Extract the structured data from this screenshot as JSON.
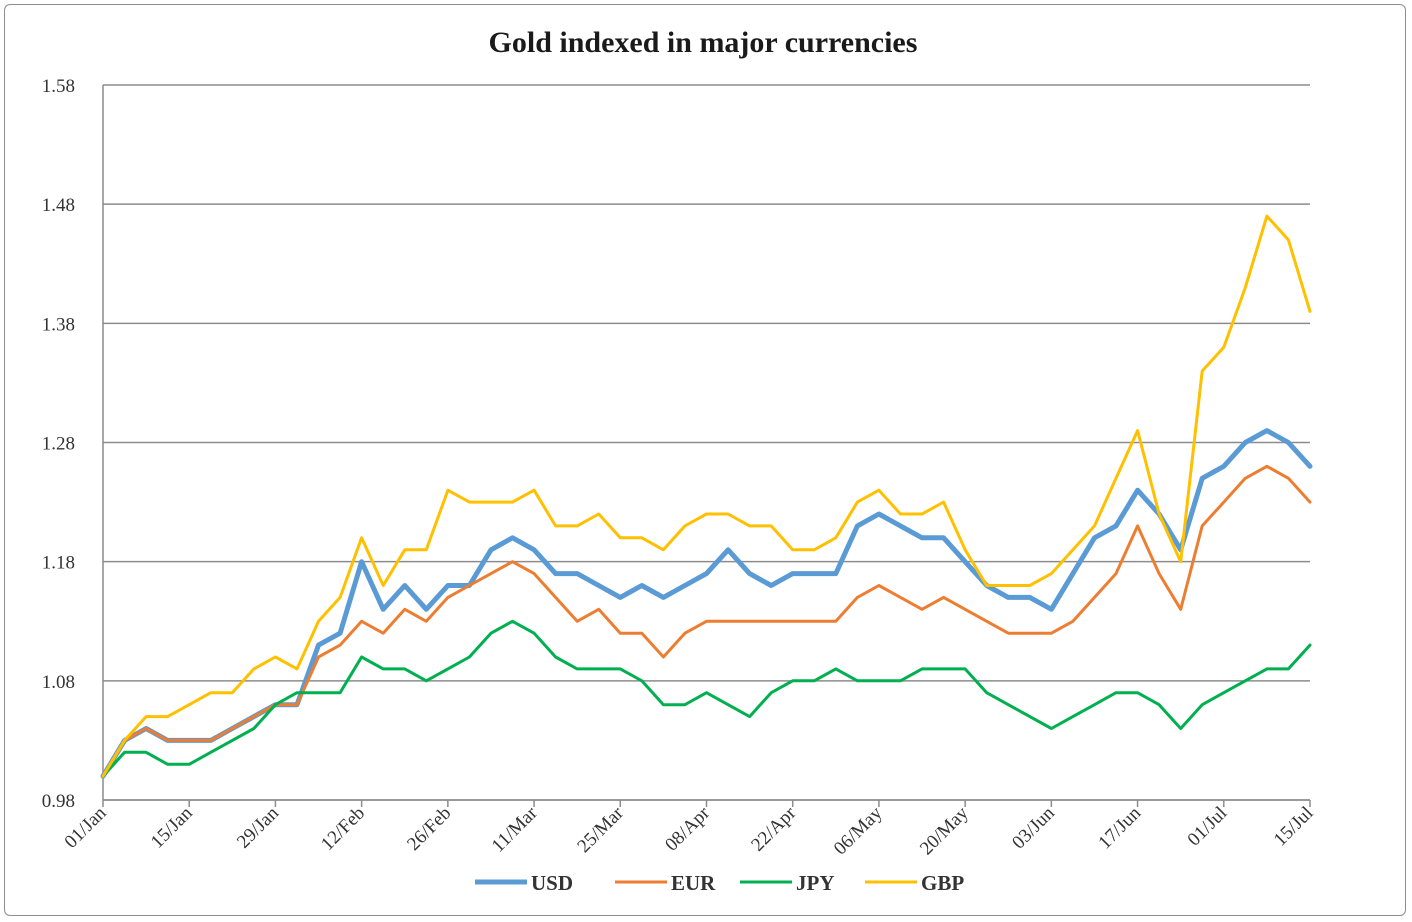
{
  "chart_data": {
    "type": "line",
    "title": "Gold indexed in major currencies",
    "xlabel": "",
    "ylabel": "",
    "ylim": [
      0.98,
      1.58
    ],
    "yticks": [
      "0.98",
      "1.08",
      "1.18",
      "1.28",
      "1.38",
      "1.48",
      "1.58"
    ],
    "x_tick_labels": [
      "01/Jan",
      "15/Jan",
      "29/Jan",
      "12/Feb",
      "26/Feb",
      "11/Mar",
      "25/Mar",
      "08/Apr",
      "22/Apr",
      "06/May",
      "20/May",
      "03/Jun",
      "17/Jun",
      "01/Jul",
      "15/Jul"
    ],
    "grid": "horizontal",
    "legend": "bottom",
    "x": [
      "01/Jan",
      "05/Jan",
      "08/Jan",
      "12/Jan",
      "15/Jan",
      "19/Jan",
      "22/Jan",
      "26/Jan",
      "29/Jan",
      "02/Feb",
      "05/Feb",
      "09/Feb",
      "12/Feb",
      "16/Feb",
      "19/Feb",
      "23/Feb",
      "26/Feb",
      "02/Mar",
      "05/Mar",
      "09/Mar",
      "11/Mar",
      "15/Mar",
      "18/Mar",
      "22/Mar",
      "25/Mar",
      "29/Mar",
      "01/Apr",
      "05/Apr",
      "08/Apr",
      "12/Apr",
      "15/Apr",
      "19/Apr",
      "22/Apr",
      "26/Apr",
      "29/Apr",
      "03/May",
      "06/May",
      "10/May",
      "13/May",
      "17/May",
      "20/May",
      "24/May",
      "27/May",
      "31/May",
      "03/Jun",
      "07/Jun",
      "10/Jun",
      "14/Jun",
      "17/Jun",
      "21/Jun",
      "24/Jun",
      "28/Jun",
      "01/Jul",
      "05/Jul",
      "08/Jul",
      "12/Jul",
      "15/Jul"
    ],
    "series": [
      {
        "name": "USD",
        "color": "#5b9bd5",
        "values": [
          1.0,
          1.03,
          1.04,
          1.03,
          1.03,
          1.03,
          1.04,
          1.05,
          1.06,
          1.06,
          1.11,
          1.12,
          1.18,
          1.14,
          1.16,
          1.14,
          1.16,
          1.16,
          1.19,
          1.2,
          1.19,
          1.17,
          1.17,
          1.16,
          1.15,
          1.16,
          1.15,
          1.16,
          1.17,
          1.19,
          1.17,
          1.16,
          1.17,
          1.17,
          1.17,
          1.21,
          1.22,
          1.21,
          1.2,
          1.2,
          1.18,
          1.16,
          1.15,
          1.15,
          1.14,
          1.17,
          1.2,
          1.21,
          1.24,
          1.22,
          1.19,
          1.25,
          1.26,
          1.28,
          1.29,
          1.28,
          1.26
        ]
      },
      {
        "name": "EUR",
        "color": "#ed7d31",
        "values": [
          1.0,
          1.03,
          1.04,
          1.03,
          1.03,
          1.03,
          1.04,
          1.05,
          1.06,
          1.06,
          1.1,
          1.11,
          1.13,
          1.12,
          1.14,
          1.13,
          1.15,
          1.16,
          1.17,
          1.18,
          1.17,
          1.15,
          1.13,
          1.14,
          1.12,
          1.12,
          1.1,
          1.12,
          1.13,
          1.13,
          1.13,
          1.13,
          1.13,
          1.13,
          1.13,
          1.15,
          1.16,
          1.15,
          1.14,
          1.15,
          1.14,
          1.13,
          1.12,
          1.12,
          1.12,
          1.13,
          1.15,
          1.17,
          1.21,
          1.17,
          1.14,
          1.21,
          1.23,
          1.25,
          1.26,
          1.25,
          1.23
        ]
      },
      {
        "name": "JPY",
        "color": "#00b050",
        "values": [
          1.0,
          1.02,
          1.02,
          1.01,
          1.01,
          1.02,
          1.03,
          1.04,
          1.06,
          1.07,
          1.07,
          1.07,
          1.1,
          1.09,
          1.09,
          1.08,
          1.09,
          1.1,
          1.12,
          1.13,
          1.12,
          1.1,
          1.09,
          1.09,
          1.09,
          1.08,
          1.06,
          1.06,
          1.07,
          1.06,
          1.05,
          1.07,
          1.08,
          1.08,
          1.09,
          1.08,
          1.08,
          1.08,
          1.09,
          1.09,
          1.09,
          1.07,
          1.06,
          1.05,
          1.04,
          1.05,
          1.06,
          1.07,
          1.07,
          1.06,
          1.04,
          1.06,
          1.07,
          1.08,
          1.09,
          1.09,
          1.11
        ]
      },
      {
        "name": "GBP",
        "color": "#ffc000",
        "values": [
          1.0,
          1.03,
          1.05,
          1.05,
          1.06,
          1.07,
          1.07,
          1.09,
          1.1,
          1.09,
          1.13,
          1.15,
          1.2,
          1.16,
          1.19,
          1.19,
          1.24,
          1.23,
          1.23,
          1.23,
          1.24,
          1.21,
          1.21,
          1.22,
          1.2,
          1.2,
          1.19,
          1.21,
          1.22,
          1.22,
          1.21,
          1.21,
          1.19,
          1.19,
          1.2,
          1.23,
          1.24,
          1.22,
          1.22,
          1.23,
          1.19,
          1.16,
          1.16,
          1.16,
          1.17,
          1.19,
          1.21,
          1.25,
          1.29,
          1.22,
          1.18,
          1.34,
          1.36,
          1.41,
          1.47,
          1.45,
          1.39
        ]
      }
    ]
  }
}
